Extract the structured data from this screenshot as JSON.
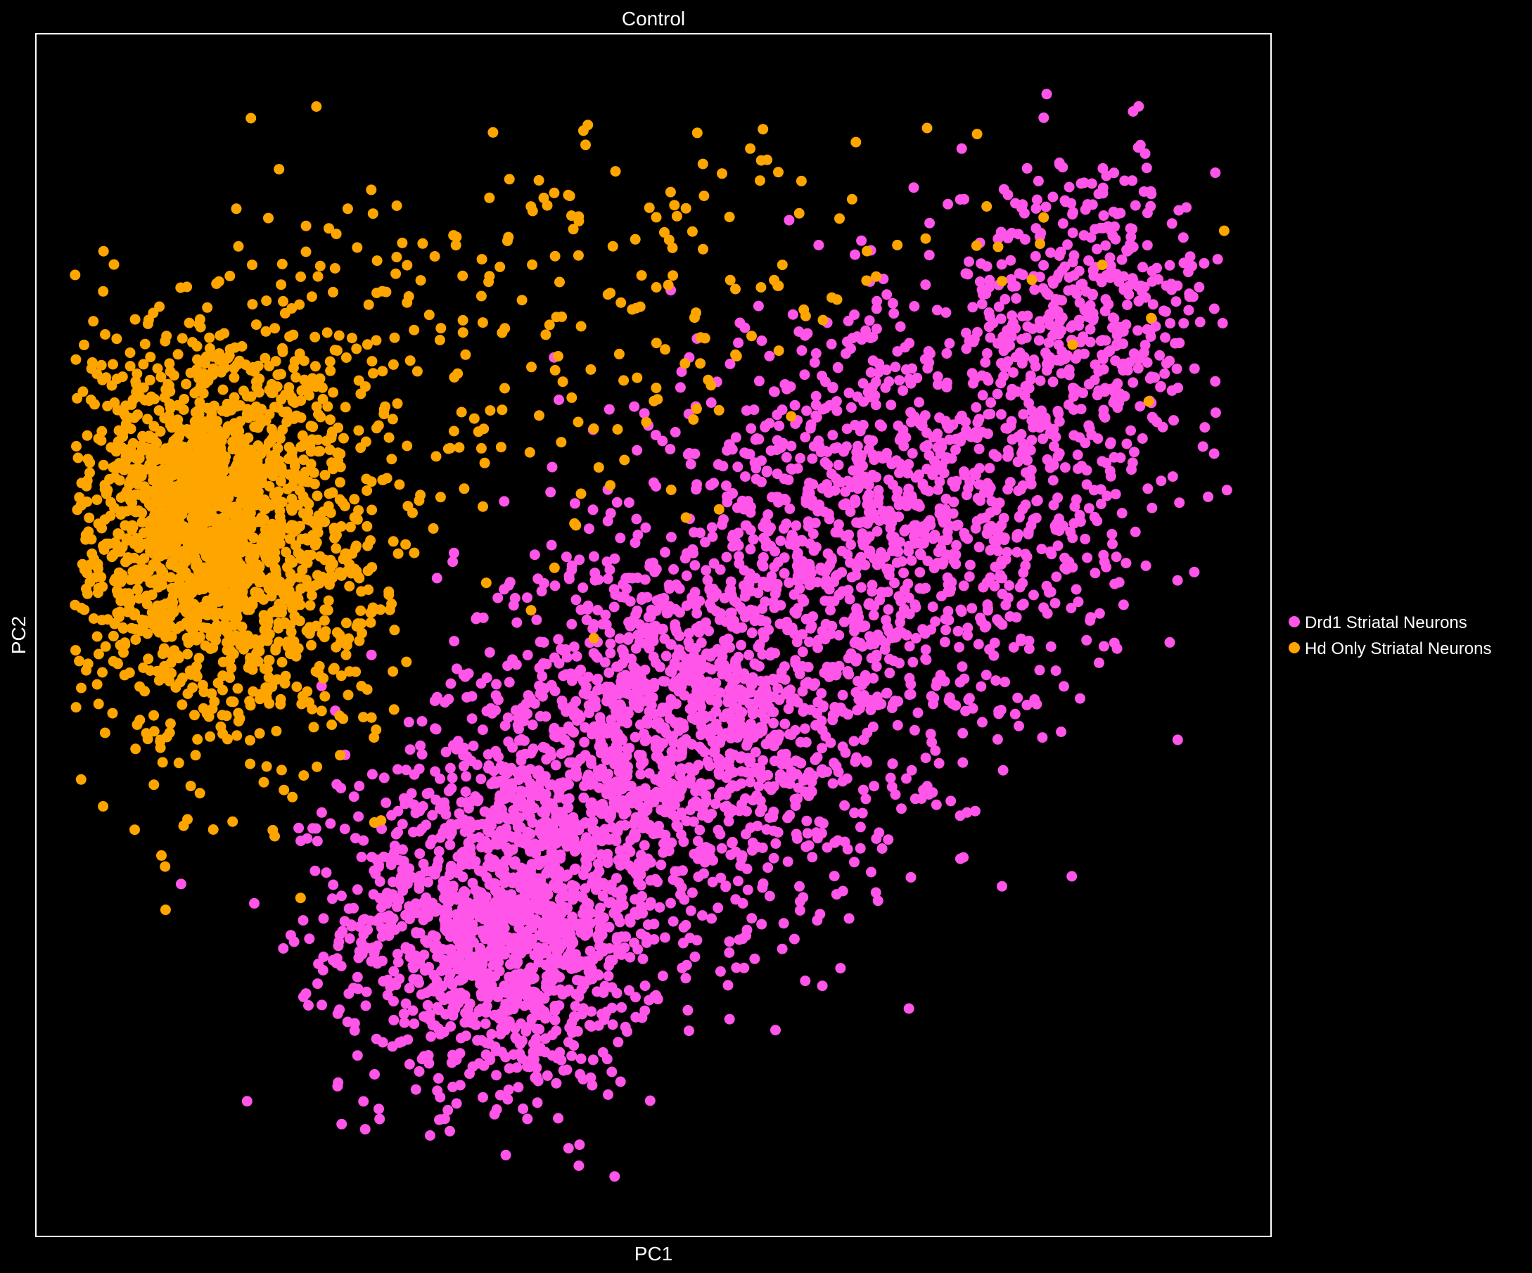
{
  "chart_data": {
    "type": "scatter",
    "title": "Control",
    "xlabel": "PC1",
    "ylabel": "PC2",
    "xlim": [
      0,
      100
    ],
    "ylim": [
      0,
      100
    ],
    "grid": false,
    "axis_ticks": false,
    "background": "#000000",
    "frame_color": "#ffffff",
    "legend_position": "right",
    "series": [
      {
        "name": "Drd1 Striatal Neurons",
        "color": "#ff55e8",
        "clusters": [
          {
            "cx": 38,
            "cy": 26,
            "sx": 6.5,
            "sy": 7.0,
            "n": 1400
          },
          {
            "cx": 52,
            "cy": 42,
            "sx": 9.0,
            "sy": 8.0,
            "n": 1400
          },
          {
            "cx": 69,
            "cy": 59,
            "sx": 9.0,
            "sy": 8.5,
            "n": 1100
          },
          {
            "cx": 85,
            "cy": 76,
            "sx": 5.5,
            "sy": 7.0,
            "n": 500
          }
        ]
      },
      {
        "name": "Hd Only Striatal Neurons",
        "color": "#ffa500",
        "clusters": [
          {
            "cx": 15,
            "cy": 59,
            "sx": 6.5,
            "sy": 9.0,
            "n": 1600
          },
          {
            "cx": 13,
            "cy": 60,
            "sx": 3.0,
            "sy": 5.0,
            "n": 500
          },
          {
            "cx": 40,
            "cy": 73,
            "sx": 11.0,
            "sy": 9.0,
            "n": 160
          },
          {
            "cx": 60,
            "cy": 82,
            "sx": 15.0,
            "sy": 7.0,
            "n": 70
          }
        ]
      }
    ]
  }
}
